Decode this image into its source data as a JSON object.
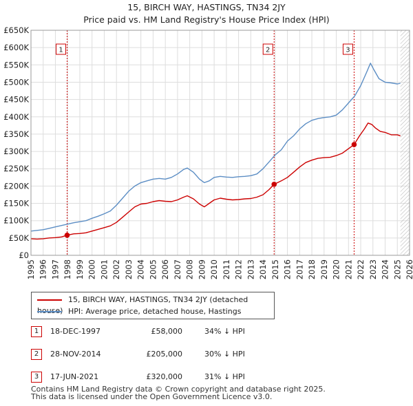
{
  "title": "15, BIRCH WAY, HASTINGS, TN34 2JY",
  "subtitle": "Price paid vs. HM Land Registry's House Price Index (HPI)",
  "colors": {
    "property": "#cc0000",
    "hpi": "#5b8dc4",
    "marker_line": "#cc0000",
    "hatch": "#cccccc"
  },
  "legend": {
    "property_label": "15, BIRCH WAY, HASTINGS, TN34 2JY (detached house)",
    "hpi_label": "HPI: Average price, detached house, Hastings"
  },
  "sales": [
    {
      "num": "1",
      "date": "18-DEC-1997",
      "price": "£58,000",
      "hpi_diff": "34% ↓ HPI"
    },
    {
      "num": "2",
      "date": "28-NOV-2014",
      "price": "£205,000",
      "hpi_diff": "30% ↓ HPI"
    },
    {
      "num": "3",
      "date": "17-JUN-2021",
      "price": "£320,000",
      "hpi_diff": "31% ↓ HPI"
    }
  ],
  "footer": {
    "line1": "Contains HM Land Registry data © Crown copyright and database right 2025.",
    "line2": "This data is licensed under the Open Government Licence v3.0."
  },
  "chart_data": {
    "type": "line",
    "title": "15, BIRCH WAY, HASTINGS, TN34 2JY",
    "subtitle": "Price paid vs. HM Land Registry's House Price Index (HPI)",
    "xlabel": "",
    "ylabel": "",
    "xlim": [
      1995,
      2026
    ],
    "ylim": [
      0,
      650000
    ],
    "grid": true,
    "data_end_year": 2025.25,
    "x_ticks": [
      "1995",
      "1996",
      "1997",
      "1998",
      "1999",
      "2000",
      "2001",
      "2002",
      "2003",
      "2004",
      "2005",
      "2006",
      "2007",
      "2008",
      "2009",
      "2010",
      "2011",
      "2012",
      "2013",
      "2014",
      "2015",
      "2016",
      "2017",
      "2018",
      "2019",
      "2020",
      "2021",
      "2022",
      "2023",
      "2024",
      "2025",
      "2026"
    ],
    "y_ticks": [
      {
        "value": 0,
        "label": "£0"
      },
      {
        "value": 50000,
        "label": "£50K"
      },
      {
        "value": 100000,
        "label": "£100K"
      },
      {
        "value": 150000,
        "label": "£150K"
      },
      {
        "value": 200000,
        "label": "£200K"
      },
      {
        "value": 250000,
        "label": "£250K"
      },
      {
        "value": 300000,
        "label": "£300K"
      },
      {
        "value": 350000,
        "label": "£350K"
      },
      {
        "value": 400000,
        "label": "£400K"
      },
      {
        "value": 450000,
        "label": "£450K"
      },
      {
        "value": 500000,
        "label": "£500K"
      },
      {
        "value": 550000,
        "label": "£550K"
      },
      {
        "value": 600000,
        "label": "£600K"
      },
      {
        "value": 650000,
        "label": "£650K"
      }
    ],
    "markers": [
      {
        "label": "1",
        "x": 1997.96,
        "y": 58000
      },
      {
        "label": "2",
        "x": 2014.91,
        "y": 205000
      },
      {
        "label": "3",
        "x": 2021.46,
        "y": 320000
      }
    ],
    "series": [
      {
        "name": "15, BIRCH WAY, HASTINGS, TN34 2JY (detached house)",
        "color": "#cc0000",
        "points": [
          [
            1995,
            48000
          ],
          [
            1995.5,
            47000
          ],
          [
            1996,
            48000
          ],
          [
            1996.5,
            50000
          ],
          [
            1997,
            51000
          ],
          [
            1997.5,
            53000
          ],
          [
            1997.96,
            58000
          ],
          [
            1998.5,
            62000
          ],
          [
            1999,
            63000
          ],
          [
            1999.5,
            65000
          ],
          [
            2000,
            70000
          ],
          [
            2000.5,
            75000
          ],
          [
            2001,
            80000
          ],
          [
            2001.5,
            85000
          ],
          [
            2002,
            95000
          ],
          [
            2002.5,
            110000
          ],
          [
            2003,
            125000
          ],
          [
            2003.5,
            140000
          ],
          [
            2004,
            148000
          ],
          [
            2004.5,
            150000
          ],
          [
            2005,
            155000
          ],
          [
            2005.5,
            158000
          ],
          [
            2006,
            156000
          ],
          [
            2006.5,
            155000
          ],
          [
            2007,
            160000
          ],
          [
            2007.5,
            168000
          ],
          [
            2007.8,
            172000
          ],
          [
            2008.3,
            163000
          ],
          [
            2008.8,
            148000
          ],
          [
            2009.2,
            140000
          ],
          [
            2009.6,
            150000
          ],
          [
            2010,
            160000
          ],
          [
            2010.5,
            165000
          ],
          [
            2011,
            162000
          ],
          [
            2011.5,
            160000
          ],
          [
            2012,
            161000
          ],
          [
            2012.5,
            163000
          ],
          [
            2013,
            164000
          ],
          [
            2013.5,
            168000
          ],
          [
            2014,
            175000
          ],
          [
            2014.5,
            190000
          ],
          [
            2014.91,
            205000
          ],
          [
            2015.5,
            215000
          ],
          [
            2016,
            225000
          ],
          [
            2016.5,
            240000
          ],
          [
            2017,
            255000
          ],
          [
            2017.5,
            268000
          ],
          [
            2018,
            275000
          ],
          [
            2018.5,
            280000
          ],
          [
            2019,
            282000
          ],
          [
            2019.5,
            283000
          ],
          [
            2020,
            288000
          ],
          [
            2020.5,
            295000
          ],
          [
            2021,
            308000
          ],
          [
            2021.46,
            320000
          ],
          [
            2021.9,
            345000
          ],
          [
            2022.3,
            365000
          ],
          [
            2022.6,
            382000
          ],
          [
            2022.9,
            378000
          ],
          [
            2023.2,
            368000
          ],
          [
            2023.6,
            358000
          ],
          [
            2024,
            355000
          ],
          [
            2024.5,
            348000
          ],
          [
            2025,
            348000
          ],
          [
            2025.25,
            345000
          ]
        ]
      },
      {
        "name": "HPI: Average price, detached house, Hastings",
        "color": "#5b8dc4",
        "points": [
          [
            1995,
            70000
          ],
          [
            1995.5,
            72000
          ],
          [
            1996,
            74000
          ],
          [
            1996.5,
            78000
          ],
          [
            1997,
            82000
          ],
          [
            1997.5,
            86000
          ],
          [
            1998,
            90000
          ],
          [
            1998.5,
            94000
          ],
          [
            1999,
            97000
          ],
          [
            1999.5,
            100000
          ],
          [
            2000,
            107000
          ],
          [
            2000.5,
            113000
          ],
          [
            2001,
            120000
          ],
          [
            2001.5,
            128000
          ],
          [
            2002,
            145000
          ],
          [
            2002.5,
            165000
          ],
          [
            2003,
            185000
          ],
          [
            2003.5,
            200000
          ],
          [
            2004,
            210000
          ],
          [
            2004.5,
            215000
          ],
          [
            2005,
            220000
          ],
          [
            2005.5,
            222000
          ],
          [
            2006,
            220000
          ],
          [
            2006.5,
            225000
          ],
          [
            2007,
            235000
          ],
          [
            2007.5,
            248000
          ],
          [
            2007.8,
            252000
          ],
          [
            2008.3,
            240000
          ],
          [
            2008.8,
            220000
          ],
          [
            2009.2,
            210000
          ],
          [
            2009.6,
            215000
          ],
          [
            2010,
            225000
          ],
          [
            2010.5,
            228000
          ],
          [
            2011,
            226000
          ],
          [
            2011.5,
            225000
          ],
          [
            2012,
            227000
          ],
          [
            2012.5,
            228000
          ],
          [
            2013,
            230000
          ],
          [
            2013.5,
            235000
          ],
          [
            2014,
            250000
          ],
          [
            2014.5,
            270000
          ],
          [
            2015,
            290000
          ],
          [
            2015.5,
            305000
          ],
          [
            2016,
            330000
          ],
          [
            2016.5,
            345000
          ],
          [
            2017,
            365000
          ],
          [
            2017.5,
            380000
          ],
          [
            2018,
            390000
          ],
          [
            2018.5,
            395000
          ],
          [
            2019,
            398000
          ],
          [
            2019.5,
            400000
          ],
          [
            2020,
            405000
          ],
          [
            2020.5,
            420000
          ],
          [
            2021,
            440000
          ],
          [
            2021.5,
            460000
          ],
          [
            2022,
            490000
          ],
          [
            2022.5,
            530000
          ],
          [
            2022.8,
            555000
          ],
          [
            2023.1,
            535000
          ],
          [
            2023.5,
            510000
          ],
          [
            2024,
            500000
          ],
          [
            2024.5,
            498000
          ],
          [
            2025,
            495000
          ],
          [
            2025.25,
            497000
          ]
        ]
      }
    ]
  }
}
